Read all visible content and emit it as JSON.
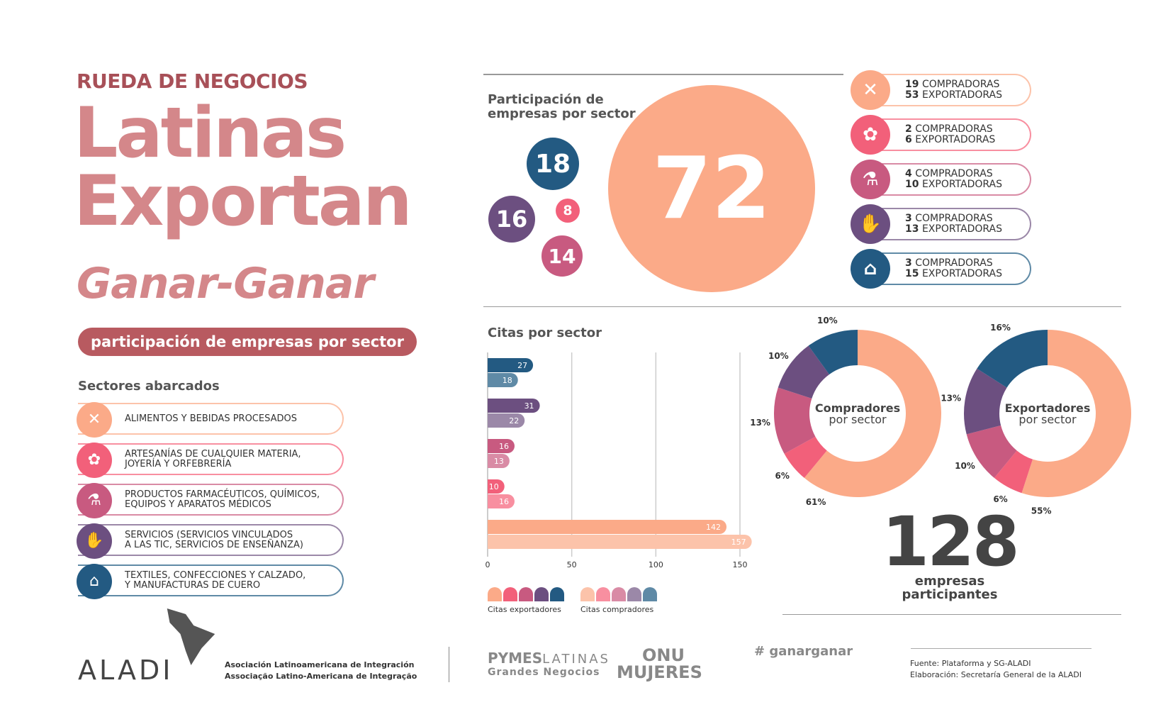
{
  "header": {
    "kicker": "RUEDA DE NEGOCIOS",
    "title_line1": "Latinas",
    "title_line2": "Exportan",
    "subtitle": "Ganar-Ganar",
    "pill": "participación de empresas por sector"
  },
  "sectors": {
    "heading": "Sectores abarcados",
    "items": [
      {
        "key": "alimentos",
        "line1": "ALIMENTOS Y BEBIDAS PROCESADOS",
        "line2": "",
        "icon": "fork-knife-icon",
        "glyph": "✕",
        "color": "#fbaa88",
        "light": "#fcc3aa"
      },
      {
        "key": "artesanias",
        "line1": "ARTESANÍAS DE CUALQUIER MATERIA,",
        "line2": "JOYERÍA Y ORFEBRERÍA",
        "icon": "jewel-icon",
        "glyph": "✿",
        "color": "#f2607a",
        "light": "#f88fa0"
      },
      {
        "key": "farma",
        "line1": "PRODUCTOS FARMACÉUTICOS, QUÍMICOS,",
        "line2": "EQUIPOS Y APARATOS MÉDICOS",
        "icon": "test-tube-icon",
        "glyph": "⚗",
        "color": "#c85a80",
        "light": "#d98ba5"
      },
      {
        "key": "servicios",
        "line1": "SERVICIOS (SERVICIOS VINCULADOS",
        "line2": "A LAS TIC, SERVICIOS DE ENSEÑANZA)",
        "icon": "hand-icon",
        "glyph": "✋",
        "color": "#6c4f80",
        "light": "#9b88a8"
      },
      {
        "key": "textiles",
        "line1": "TEXTILES, CONFECCIONES Y CALZADO,",
        "line2": "Y MANUFACTURAS DE CUERO",
        "icon": "hanger-icon",
        "glyph": "⌂",
        "color": "#235a82",
        "light": "#5f8aa6"
      }
    ]
  },
  "participation": {
    "heading1": "Participación de",
    "heading2": "empresas por sector",
    "bubbles": {
      "alimentos": "72",
      "textiles": "18",
      "servicios": "16",
      "artesanias": "8",
      "farma": "14"
    }
  },
  "counts": [
    {
      "compradoras": "19",
      "exportadoras": "53",
      "label_c": "COMPRADORAS",
      "label_e": "EXPORTADORAS"
    },
    {
      "compradoras": "2",
      "exportadoras": "6",
      "label_c": "COMPRADORAS",
      "label_e": "EXPORTADORAS"
    },
    {
      "compradoras": "4",
      "exportadoras": "10",
      "label_c": "COMPRADORAS",
      "label_e": "EXPORTADORAS"
    },
    {
      "compradoras": "3",
      "exportadoras": "13",
      "label_c": "COMPRADORAS",
      "label_e": "EXPORTADORAS"
    },
    {
      "compradoras": "3",
      "exportadoras": "15",
      "label_c": "COMPRADORAS",
      "label_e": "EXPORTADORAS"
    }
  ],
  "chart_data": [
    {
      "type": "bar",
      "title": "Citas por sector",
      "orientation": "horizontal",
      "categories": [
        "Textiles",
        "Servicios",
        "Farmacéuticos",
        "Artesanías",
        "Alimentos"
      ],
      "series": [
        {
          "name": "Citas exportadores",
          "values": [
            27,
            31,
            16,
            10,
            142
          ]
        },
        {
          "name": "Citas compradores",
          "values": [
            18,
            22,
            13,
            16,
            157
          ]
        }
      ],
      "xlim": [
        0,
        150
      ],
      "xticks": [
        "0",
        "50",
        "100",
        "150"
      ],
      "grid": true,
      "legend": "bottom"
    },
    {
      "type": "pie",
      "title": "Compradores",
      "subtitle": "por sector",
      "categories": [
        "Alimentos",
        "Artesanías",
        "Farmacéuticos",
        "Servicios",
        "Textiles"
      ],
      "values": [
        61,
        6,
        13,
        10,
        10
      ]
    },
    {
      "type": "pie",
      "title": "Exportadores",
      "subtitle": "por sector",
      "categories": [
        "Alimentos",
        "Artesanías",
        "Farmacéuticos",
        "Servicios",
        "Textiles"
      ],
      "values": [
        55,
        6,
        10,
        13,
        16
      ]
    }
  ],
  "total": {
    "number": "128",
    "line1": "empresas",
    "line2": "participantes"
  },
  "footer": {
    "aladi": "ALADI",
    "aladi_es": "Asociación Latinoamericana de Integración",
    "aladi_pt": "Associação Latino-Americana de Integração",
    "pymes": "PYMES",
    "latinas": "LATINAS",
    "grandes": "Grandes Negocios",
    "onu": "ONU",
    "mujeres": "MUJERES",
    "ganar": "ganarganar",
    "fuente": "Fuente: Plataforma y SG-ALADI",
    "elaboracion": "Elaboración: Secretaría General de la ALADI"
  }
}
